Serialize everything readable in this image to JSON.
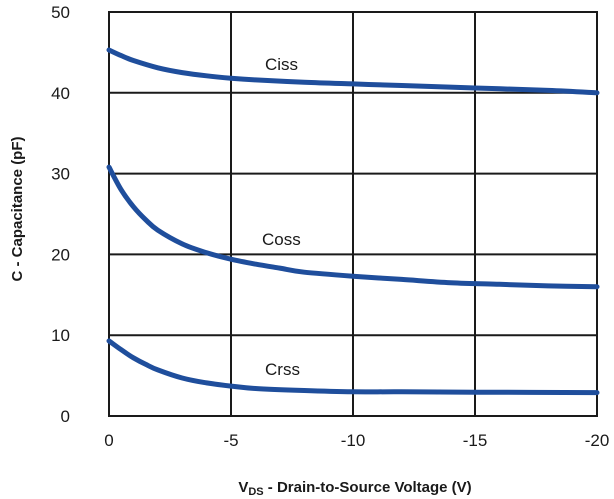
{
  "chart_data": {
    "type": "line",
    "title": "",
    "xlabel": {
      "prefix": "V",
      "sub": "DS",
      "rest": " - Drain-to-Source Voltage (V)"
    },
    "ylabel": "C - Capacitance (pF)",
    "xlim": [
      0,
      -20
    ],
    "ylim": [
      0,
      50
    ],
    "xticks": [
      0,
      -5,
      -10,
      -15,
      -20
    ],
    "xtick_labels": [
      "0",
      "-5",
      "-10",
      "-15",
      "-20"
    ],
    "yticks": [
      0,
      10,
      20,
      30,
      40,
      50
    ],
    "ytick_labels": [
      "0",
      "10",
      "20",
      "30",
      "40",
      "50"
    ],
    "grid": true,
    "line_color": "#1f4e9c",
    "series": [
      {
        "name": "Ciss",
        "x": [
          0,
          -0.5,
          -1,
          -2,
          -3,
          -4,
          -5,
          -6,
          -8,
          -10,
          -12,
          -15,
          -18,
          -20
        ],
        "y": [
          45.3,
          44.6,
          44.0,
          43.1,
          42.5,
          42.1,
          41.8,
          41.6,
          41.3,
          41.1,
          40.9,
          40.6,
          40.3,
          40.0
        ]
      },
      {
        "name": "Coss",
        "x": [
          0,
          -0.5,
          -1,
          -1.5,
          -2,
          -3,
          -4,
          -5,
          -6,
          -7,
          -8,
          -10,
          -12,
          -14,
          -16,
          -18,
          -20
        ],
        "y": [
          30.8,
          28.0,
          25.9,
          24.3,
          23.0,
          21.3,
          20.2,
          19.4,
          18.8,
          18.3,
          17.8,
          17.3,
          16.9,
          16.5,
          16.3,
          16.1,
          16.0
        ]
      },
      {
        "name": "Crss",
        "x": [
          0,
          -0.5,
          -1,
          -1.5,
          -2,
          -3,
          -4,
          -5,
          -6,
          -8,
          -10,
          -12,
          -15,
          -20
        ],
        "y": [
          9.3,
          8.2,
          7.2,
          6.4,
          5.7,
          4.7,
          4.1,
          3.7,
          3.4,
          3.15,
          3.0,
          3.0,
          2.95,
          2.9
        ]
      }
    ]
  }
}
